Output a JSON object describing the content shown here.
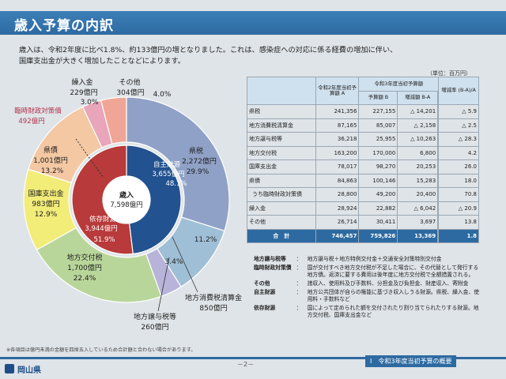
{
  "header": {
    "title": "歳入予算の内訳"
  },
  "intro": [
    "歳入は、令和2年度に比べ1.8%、約133億円の増となりました。これは、感染症への対応に係る経費の増加に伴い、",
    "国庫支出金が大きく増加したことなどによります。"
  ],
  "unit": "（単位：百万円）",
  "chart_data": {
    "type": "pie",
    "title": "",
    "center": {
      "label": "歳入",
      "value": "7,598億円"
    },
    "slices": [
      {
        "name": "県税",
        "amount": "2,272億円",
        "percent": "29.9%",
        "value": 29.9,
        "color": "#8fa1c6"
      },
      {
        "name": "地方消費税清算金",
        "amount": "850億円",
        "percent": "11.2%",
        "value": 11.2,
        "color": "#9fbfd6"
      },
      {
        "name": "地方譲与税等",
        "amount": "260億円",
        "percent": "3.4%",
        "value": 3.4,
        "color": "#b8b3d8"
      },
      {
        "name": "地方交付税",
        "amount": "1,700億円",
        "percent": "22.4%",
        "value": 22.4,
        "color": "#b9d69a"
      },
      {
        "name": "国庫支出金",
        "amount": "983億円",
        "percent": "12.9%",
        "value": 12.9,
        "color": "#f2ec78"
      },
      {
        "name": "県債",
        "amount": "1,001億円",
        "percent": "13.2%",
        "value": 13.2,
        "color": "#f3c8a3"
      },
      {
        "name": "繰入金",
        "amount": "229億円",
        "percent": "3.0%",
        "value": 3.0,
        "color": "#e9a5b9"
      },
      {
        "name": "その他",
        "amount": "304億円",
        "percent": "4.0%",
        "value": 4.0,
        "color": "#f0a696"
      }
    ],
    "inner": [
      {
        "name": "自主財源",
        "amount": "3,655億円",
        "percent": "48.1%",
        "value": 48.1,
        "color": "#22528f"
      },
      {
        "name": "依存財源",
        "amount": "3,944億円",
        "percent": "51.9%",
        "value": 51.9,
        "color": "#b83a3a"
      }
    ],
    "sub_label": {
      "name": "臨時財政対策債",
      "amount": "492億円"
    }
  },
  "table": {
    "headers": {
      "item": "",
      "r2": "令和2年度当初予算額 A",
      "r3": "令和3年度当初予算額",
      "r3_amount": "予算額 B",
      "diff": "増減額 B-A",
      "rate": "増減率 (B-A)/A"
    },
    "rows": [
      {
        "name": "県税",
        "a": "241,356",
        "b": "227,155",
        "d": "△ 14,201",
        "r": "△ 5.9"
      },
      {
        "name": "地方消費税清算金",
        "a": "87,165",
        "b": "85,007",
        "d": "△ 2,158",
        "r": "△ 2.5"
      },
      {
        "name": "地方譲与税等",
        "a": "36,218",
        "b": "25,955",
        "d": "△ 10,263",
        "r": "△ 28.3"
      },
      {
        "name": "地方交付税",
        "a": "163,200",
        "b": "170,000",
        "d": "6,800",
        "r": "4.2"
      },
      {
        "name": "国庫支出金",
        "a": "78,017",
        "b": "98,270",
        "d": "20,253",
        "r": "26.0"
      },
      {
        "name": "県債",
        "a": "84,863",
        "b": "100,146",
        "d": "15,283",
        "r": "18.0"
      },
      {
        "name": "うち臨時財政対策債",
        "a": "28,800",
        "b": "49,200",
        "d": "20,400",
        "r": "70.8"
      },
      {
        "name": "繰入金",
        "a": "28,924",
        "b": "22,882",
        "d": "△ 6,042",
        "r": "△ 20.9"
      },
      {
        "name": "その他",
        "a": "26,714",
        "b": "30,411",
        "d": "3,697",
        "r": "13.8"
      }
    ],
    "total": {
      "name": "合　計",
      "a": "746,457",
      "b": "759,826",
      "d": "13,369",
      "r": "1.8"
    }
  },
  "definitions": [
    {
      "term": "地方譲与税等",
      "desc": "地方譲与税＋地方特例交付金＋交通安全対策特別交付金"
    },
    {
      "term": "臨時財政対策債",
      "desc": "国が交付すべき地方交付税が不足した場合に、その代替として発行する地方債。返済に要する費用は後年度に地方交付税で全額措置される。"
    },
    {
      "term": "その他",
      "desc": "諸収入、使用料及び手数料、分担金及び負担金、財産収入、寄附金"
    },
    {
      "term": "自主財源",
      "desc": "地方公共団体が自らの権能に基づき収入しうる財源。県税、繰入金、使用料・手数料など"
    },
    {
      "term": "依存財源",
      "desc": "国によって定められた額を交付されたり割り当てられたりする財源。地方交付税、国庫支出金など"
    }
  ],
  "note": "※各項目は億円未満の金額を四捨五入しているため合計額と合わない場合があります。",
  "footer": {
    "page": "－2－",
    "section": "Ⅰ　令和3年度当初予算の概要",
    "prefecture": "岡山県"
  }
}
